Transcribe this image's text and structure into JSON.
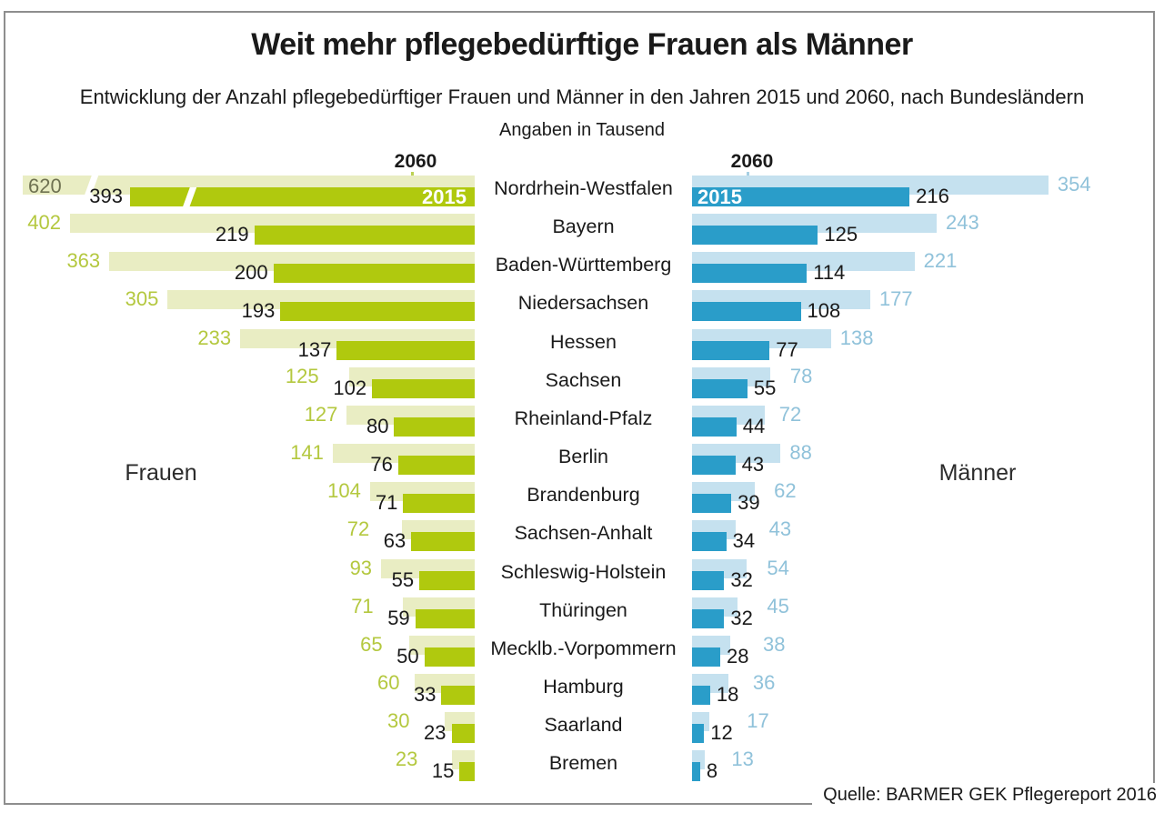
{
  "title": "Weit mehr pflegebedürftige Frauen als Männer",
  "subtitle": "Entwicklung der Anzahl pflegebedürftiger Frauen und Männer in den Jahren 2015 und 2060, nach Bundesländern",
  "unit_note": "Angaben in Tausend",
  "source": "Quelle: BARMER GEK Pflegereport 2016",
  "labels": {
    "left_group": "Frauen",
    "right_group": "Männer",
    "year_2060": "2060",
    "year_2015": "2015"
  },
  "colors": {
    "women_2060_light_green": "#e9edc3",
    "women_2015_dark_green": "#b0c90e",
    "women_value_text_green": "#b4c83f",
    "women_620_text_olive": "#6f7251",
    "men_2060_light_blue": "#c5e1ef",
    "men_2015_dark_blue": "#2a9dc9",
    "men_value_text_blue": "#90c2da",
    "tick_green": "#bcd154",
    "tick_blue": "#a6cfe3",
    "text_black": "#1a1a1a",
    "frame_gray": "#8e8e8e"
  },
  "chart_data": {
    "type": "bar",
    "orientation": "diverging-horizontal-butterfly",
    "unit": "Tausend",
    "title": "Weit mehr pflegebedürftige Frauen als Männer",
    "subtitle": "Entwicklung der Anzahl pflegebedürftiger Frauen und Männer in den Jahren 2015 und 2060, nach Bundesländern",
    "value_note": "Angaben in Tausend",
    "legend_position": "above-first-bars",
    "grid": false,
    "categories": [
      "Nordrhein-Westfalen",
      "Bayern",
      "Baden-Württemberg",
      "Niedersachsen",
      "Hessen",
      "Sachsen",
      "Rheinland-Pfalz",
      "Berlin",
      "Brandenburg",
      "Sachsen-Anhalt",
      "Schleswig-Holstein",
      "Thüringen",
      "Mecklb.-Vorpommern",
      "Hamburg",
      "Saarland",
      "Bremen"
    ],
    "series": [
      {
        "name": "Frauen 2060",
        "side": "left",
        "values": [
          620,
          402,
          363,
          305,
          233,
          125,
          127,
          141,
          104,
          72,
          93,
          71,
          65,
          60,
          30,
          23
        ]
      },
      {
        "name": "Frauen 2015",
        "side": "left",
        "values": [
          393,
          219,
          200,
          193,
          137,
          102,
          80,
          76,
          71,
          63,
          55,
          59,
          50,
          33,
          23,
          15
        ]
      },
      {
        "name": "Männer 2060",
        "side": "right",
        "values": [
          354,
          243,
          221,
          177,
          138,
          78,
          72,
          88,
          62,
          43,
          54,
          45,
          38,
          36,
          17,
          13
        ]
      },
      {
        "name": "Männer 2015",
        "side": "right",
        "values": [
          216,
          125,
          114,
          108,
          77,
          55,
          44,
          43,
          39,
          34,
          32,
          32,
          28,
          18,
          12,
          8
        ]
      }
    ],
    "truncated_bars": [
      {
        "series": "Frauen 2060",
        "category": "Nordrhein-Westfalen",
        "note": "bar clipped with white break slash"
      },
      {
        "series": "Frauen 2015",
        "category": "Nordrhein-Westfalen",
        "note": "bar clipped with white break slash"
      }
    ]
  }
}
